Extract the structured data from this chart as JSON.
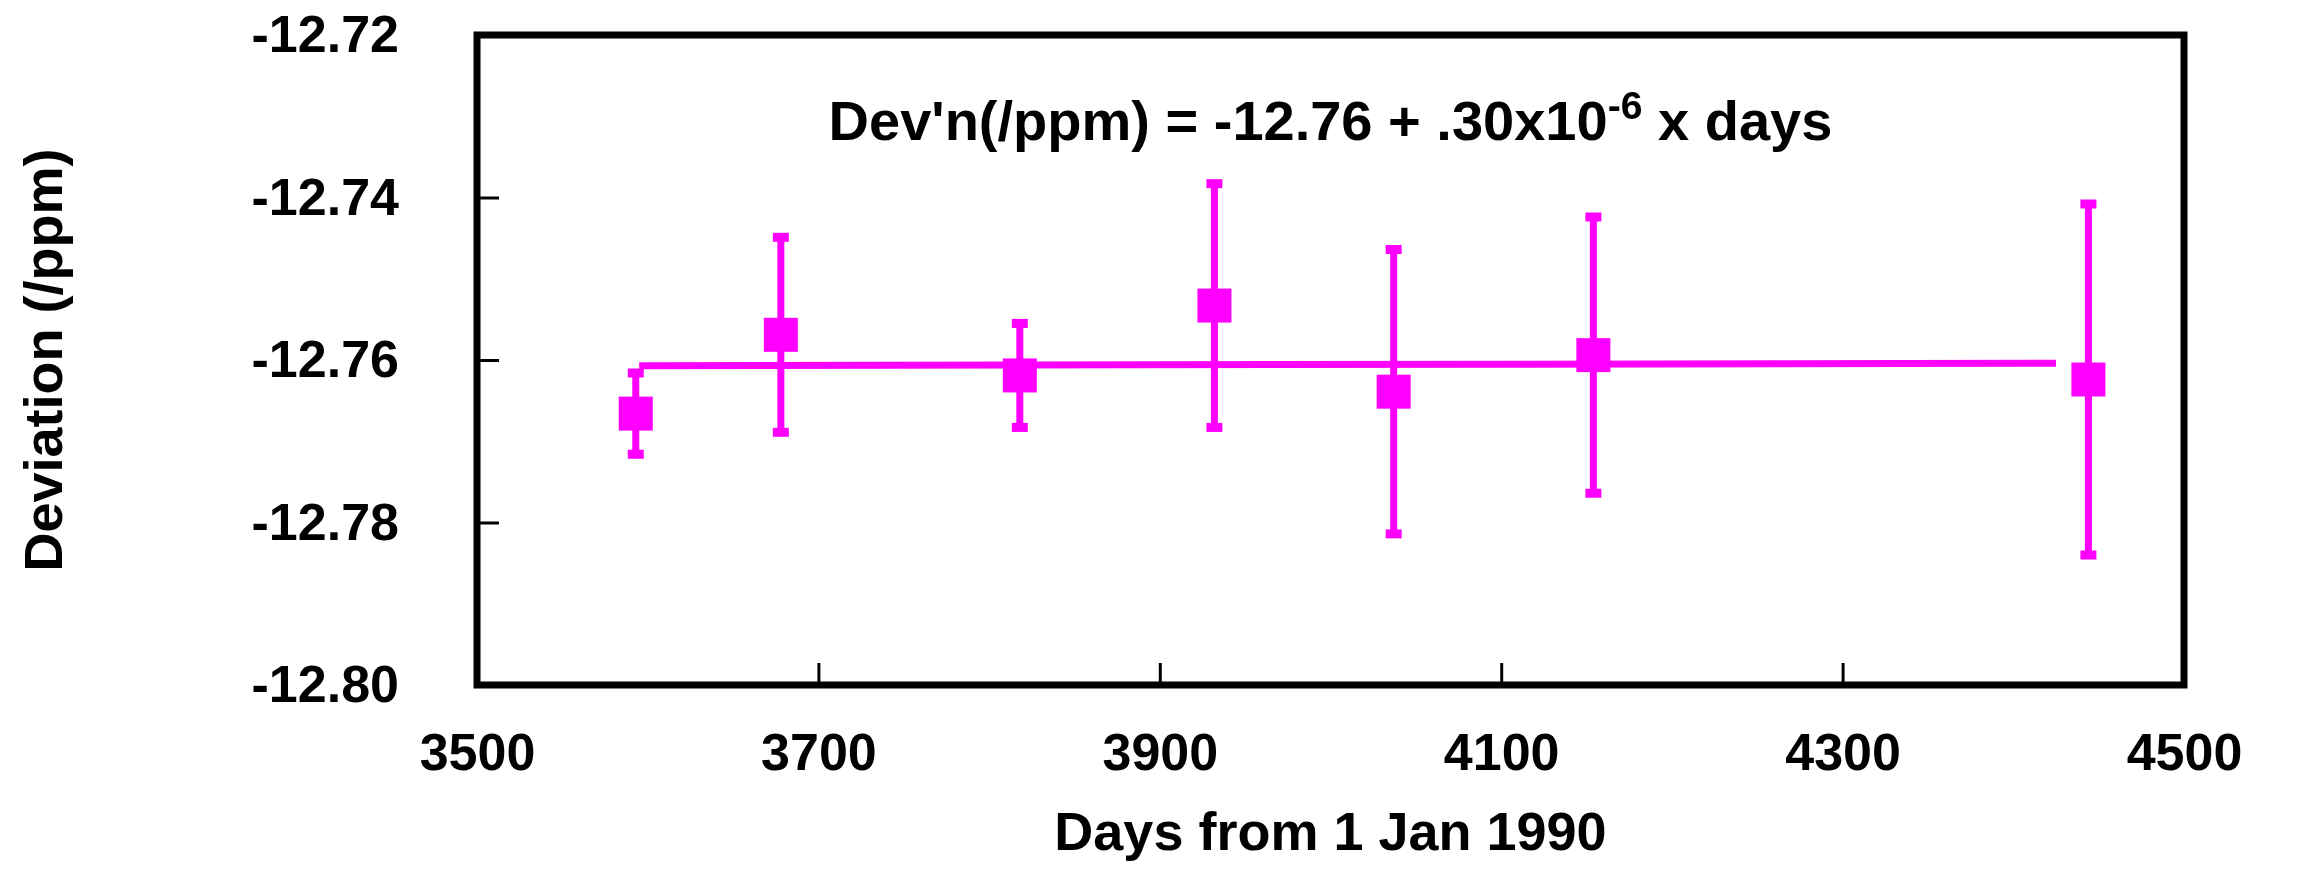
{
  "chart_data": {
    "type": "scatter",
    "xlabel": "Days from 1 Jan 1990",
    "ylabel": "Deviation (/ppm)",
    "annotations": [
      "Dev'n(/ppm) = -12.76 + .30x10$^{-6}$ x days"
    ],
    "xlim": [
      3500,
      4500
    ],
    "xticks": [
      3500,
      3700,
      3900,
      4100,
      4300,
      4500
    ],
    "ylim": [
      -12.8,
      -12.72
    ],
    "yticks": [
      -12.72,
      -12.74,
      -12.76,
      -12.78,
      {
        "value": -12.8,
        "label": "-12.80"
      }
    ],
    "grid": false,
    "marker": "square",
    "series": [
      {
        "color": "#ff00ff",
        "x": [
          3593,
          3678,
          3818,
          3932,
          4037,
          4154,
          4444
        ],
        "values": [
          -12.7666,
          -12.7569,
          -12.7619,
          -12.7533,
          -12.7639,
          -12.7594,
          -12.7624
        ],
        "errors": [
          0.005,
          0.012,
          0.0064,
          0.015,
          0.0175,
          0.017,
          0.0216
        ]
      },
      {
        "type": "line",
        "color": "#ff00ff",
        "marker": "none",
        "x": [
          3595,
          4425
        ],
        "values": [
          -12.7607,
          -12.7604
        ]
      }
    ]
  }
}
